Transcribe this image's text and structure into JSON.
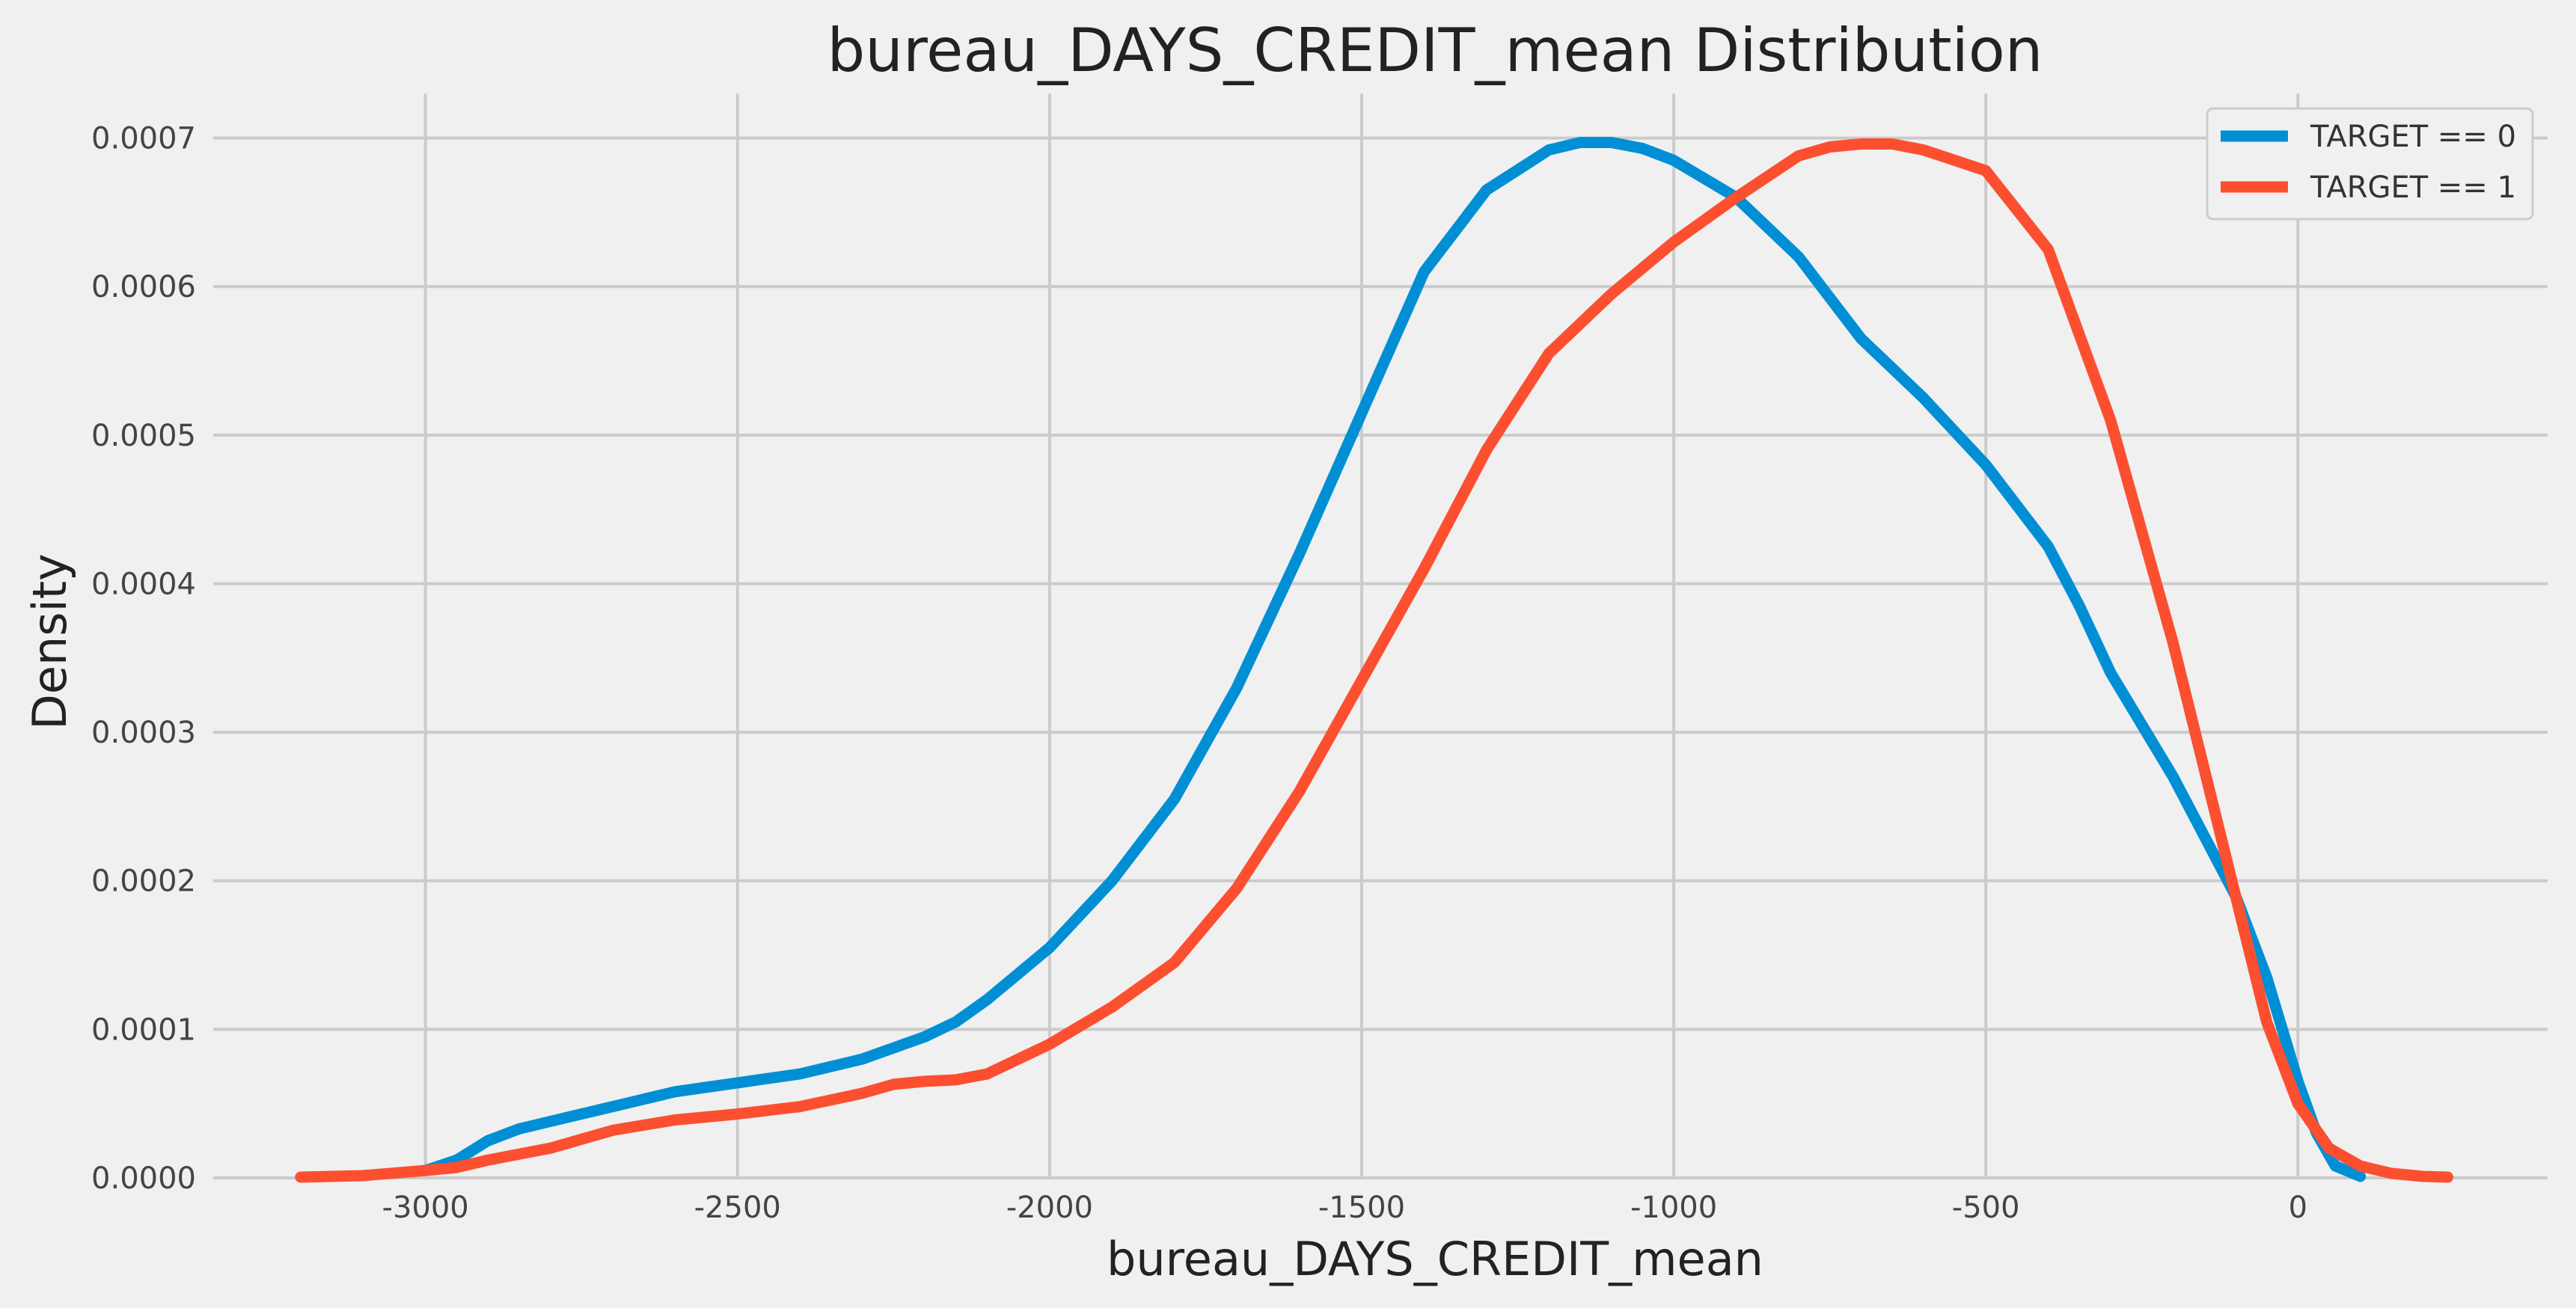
{
  "chart_data": {
    "type": "line",
    "title": "bureau_DAYS_CREDIT_mean Distribution",
    "xlabel": "bureau_DAYS_CREDIT_mean",
    "ylabel": "Density",
    "xlim": [
      -3340,
      400
    ],
    "ylim": [
      0,
      0.00073
    ],
    "x_ticks": [
      -3000,
      -2500,
      -2000,
      -1500,
      -1000,
      -500,
      0
    ],
    "x_tick_labels": [
      "-3000",
      "-2500",
      "-2000",
      "-1500",
      "-1000",
      "-500",
      "0"
    ],
    "y_ticks": [
      0,
      0.0001,
      0.0002,
      0.0003,
      0.0004,
      0.0005,
      0.0006,
      0.0007
    ],
    "y_tick_labels": [
      "0.0000",
      "0.0001",
      "0.0002",
      "0.0003",
      "0.0004",
      "0.0005",
      "0.0006",
      "0.0007"
    ],
    "grid": true,
    "legend_position": "top-right",
    "series": [
      {
        "name": "TARGET == 0",
        "color": "#008fd5",
        "x": [
          -3000,
          -2950,
          -2900,
          -2850,
          -2800,
          -2700,
          -2600,
          -2500,
          -2400,
          -2300,
          -2200,
          -2150,
          -2100,
          -2000,
          -1900,
          -1800,
          -1700,
          -1600,
          -1500,
          -1400,
          -1300,
          -1200,
          -1150,
          -1100,
          -1050,
          -1000,
          -900,
          -800,
          -700,
          -600,
          -500,
          -400,
          -350,
          -300,
          -200,
          -100,
          -50,
          0,
          30,
          60,
          100
        ],
        "y": [
          5e-06,
          1.2e-05,
          2.5e-05,
          3.3e-05,
          3.8e-05,
          4.8e-05,
          5.8e-05,
          6.4e-05,
          7e-05,
          8e-05,
          9.5e-05,
          0.000105,
          0.00012,
          0.000155,
          0.0002,
          0.000255,
          0.00033,
          0.00042,
          0.000515,
          0.00061,
          0.000665,
          0.000692,
          0.000697,
          0.000697,
          0.000693,
          0.000685,
          0.00066,
          0.00062,
          0.000565,
          0.000525,
          0.00048,
          0.000425,
          0.000385,
          0.00034,
          0.00027,
          0.00019,
          0.000135,
          6.5e-05,
          3e-05,
          8e-06,
          1e-06
        ]
      },
      {
        "name": "TARGET == 1",
        "color": "#fc4f30",
        "x": [
          -3200,
          -3100,
          -3000,
          -2950,
          -2900,
          -2800,
          -2700,
          -2600,
          -2500,
          -2400,
          -2300,
          -2250,
          -2200,
          -2150,
          -2100,
          -2000,
          -1900,
          -1800,
          -1700,
          -1600,
          -1500,
          -1400,
          -1300,
          -1200,
          -1100,
          -1000,
          -900,
          -800,
          -750,
          -700,
          -650,
          -600,
          -500,
          -400,
          -300,
          -200,
          -100,
          -50,
          0,
          50,
          100,
          150,
          200,
          240
        ],
        "y": [
          5e-07,
          1.5e-06,
          5e-06,
          7e-06,
          1.2e-05,
          2e-05,
          3.2e-05,
          3.9e-05,
          4.3e-05,
          4.8e-05,
          5.7e-05,
          6.3e-05,
          6.5e-05,
          6.6e-05,
          7e-05,
          9e-05,
          0.000115,
          0.000145,
          0.000195,
          0.00026,
          0.000335,
          0.00041,
          0.00049,
          0.000555,
          0.000595,
          0.00063,
          0.00066,
          0.000688,
          0.000694,
          0.000696,
          0.000696,
          0.000692,
          0.000678,
          0.000625,
          0.00051,
          0.00036,
          0.00019,
          0.000105,
          5e-05,
          2e-05,
          8e-06,
          3e-06,
          1e-06,
          5e-07
        ]
      }
    ]
  }
}
